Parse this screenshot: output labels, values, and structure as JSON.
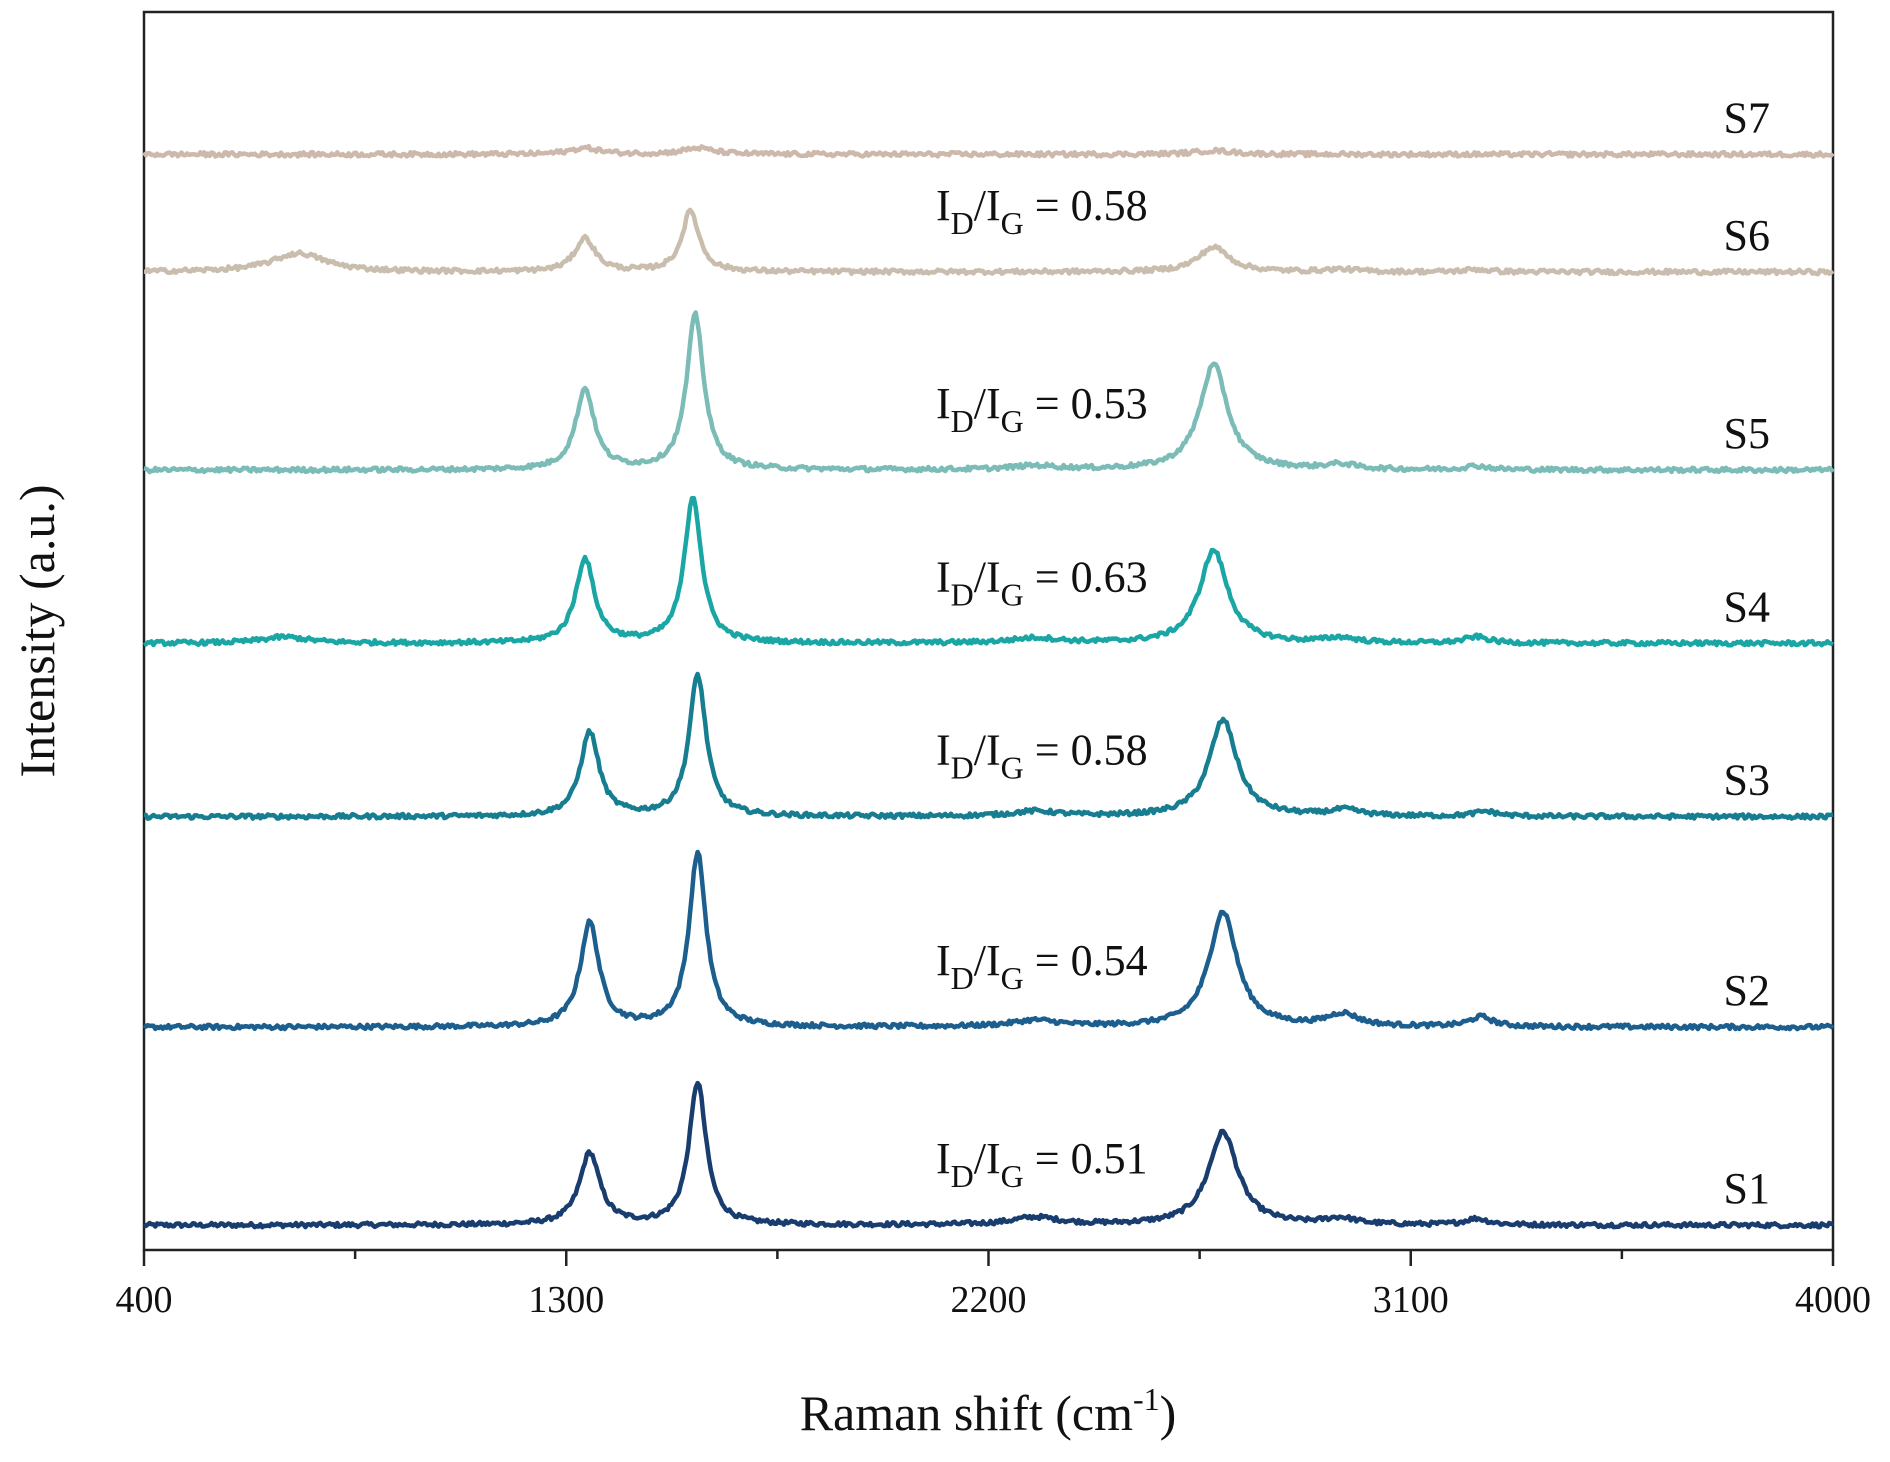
{
  "chart_data": {
    "type": "line",
    "title": "",
    "xlabel": "Raman shift (cm",
    "xlabel_sup": "-1",
    "xlabel_close": ")",
    "ylabel": "Intensity (a.u.)",
    "xlim": [
      400,
      4000
    ],
    "ylim": [
      0,
      10
    ],
    "xticks": [
      400,
      1300,
      2200,
      3100,
      4000
    ],
    "minor_xticks": [
      850,
      1750,
      2650,
      3550
    ],
    "grid": false,
    "legend": "inline labels at right",
    "ratio_prefix": "I",
    "ratio_sub_d": "D",
    "ratio_slash": "/I",
    "ratio_sub_g": "G",
    "series": [
      {
        "name": "S1",
        "color": "#183d6e",
        "baseline": 0.2,
        "ratio_text": " = 0.51",
        "ratio": 0.51,
        "peaks": [
          [
            1350,
            0.58,
            26
          ],
          [
            1580,
            1.15,
            22
          ],
          [
            2300,
            0.06,
            60
          ],
          [
            2700,
            0.75,
            38
          ],
          [
            2950,
            0.05,
            40
          ],
          [
            3240,
            0.05,
            30
          ]
        ]
      },
      {
        "name": "S2",
        "color": "#1c5f8e",
        "baseline": 1.8,
        "ratio_text": " = 0.54",
        "ratio": 0.54,
        "peaks": [
          [
            1350,
            0.84,
            24
          ],
          [
            1580,
            1.4,
            22
          ],
          [
            2300,
            0.05,
            60
          ],
          [
            2700,
            0.93,
            36
          ],
          [
            2955,
            0.1,
            40
          ],
          [
            3250,
            0.08,
            30
          ]
        ]
      },
      {
        "name": "S3",
        "color": "#177d90",
        "baseline": 3.5,
        "ratio_text": " = 0.58",
        "ratio": 0.58,
        "peaks": [
          [
            1350,
            0.68,
            24
          ],
          [
            1580,
            1.14,
            22
          ],
          [
            2300,
            0.04,
            60
          ],
          [
            2700,
            0.78,
            36
          ],
          [
            2960,
            0.05,
            40
          ],
          [
            3260,
            0.04,
            30
          ]
        ]
      },
      {
        "name": "S4",
        "color": "#1aa6a4",
        "baseline": 4.9,
        "ratio_text": " = 0.63",
        "ratio": 0.63,
        "peaks": [
          [
            700,
            0.05,
            60
          ],
          [
            1340,
            0.68,
            24
          ],
          [
            1570,
            1.18,
            22
          ],
          [
            2300,
            0.04,
            60
          ],
          [
            2680,
            0.75,
            36
          ],
          [
            2950,
            0.04,
            40
          ],
          [
            3240,
            0.05,
            30
          ]
        ]
      },
      {
        "name": "S5",
        "color": "#7bbcb7",
        "baseline": 6.3,
        "ratio_text": " = 0.53",
        "ratio": 0.53,
        "peaks": [
          [
            1340,
            0.65,
            24
          ],
          [
            1575,
            1.25,
            22
          ],
          [
            2300,
            0.03,
            60
          ],
          [
            2680,
            0.85,
            36
          ],
          [
            2950,
            0.04,
            40
          ],
          [
            3240,
            0.03,
            30
          ]
        ]
      },
      {
        "name": "S6",
        "color": "#c9bdae",
        "baseline": 7.9,
        "ratio_text": " = 0.58",
        "ratio": 0.58,
        "peaks": [
          [
            730,
            0.15,
            70
          ],
          [
            1340,
            0.27,
            26
          ],
          [
            1565,
            0.49,
            22
          ],
          [
            2680,
            0.2,
            40
          ],
          [
            2950,
            0.02,
            40
          ],
          [
            3240,
            0.02,
            30
          ]
        ]
      },
      {
        "name": "S7",
        "color": "#cdb9ab",
        "baseline": 8.85,
        "ratio_text": "",
        "ratio": null,
        "peaks": [
          [
            1340,
            0.05,
            40
          ],
          [
            1580,
            0.05,
            40
          ],
          [
            2680,
            0.03,
            50
          ]
        ]
      }
    ]
  }
}
